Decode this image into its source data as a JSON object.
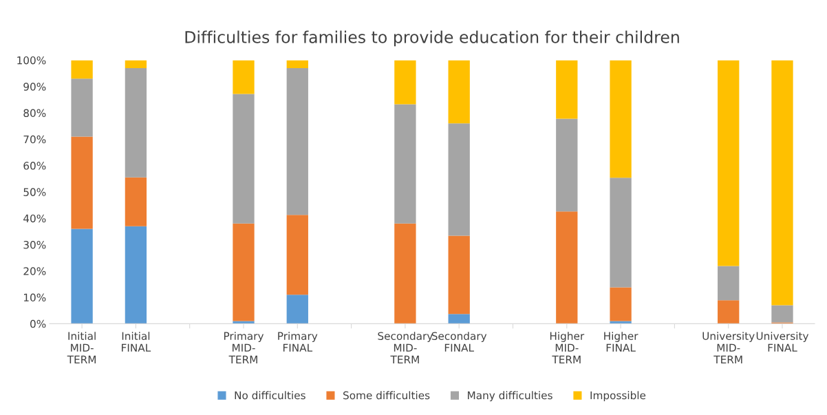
{
  "chart_data": {
    "type": "bar",
    "stacked": true,
    "title": "Difficulties for families to provide education for their children",
    "categories": [
      "Initial\nMID-\nTERM",
      "Initial\nFINAL",
      null,
      "Primary\nMID-\nTERM",
      "Primary\nFINAL",
      null,
      "Secondary\nMID-\nTERM",
      "Secondary\nFINAL",
      null,
      "Higher\nMID-\nTERM",
      "Higher\nFINAL",
      null,
      "University\nMID-\nTERM",
      "University\nFINAL"
    ],
    "series": [
      {
        "name": "No difficulties",
        "color": "#5b9bd5",
        "values": [
          36,
          37,
          null,
          1,
          11,
          null,
          0,
          3.7,
          null,
          0,
          1,
          null,
          0,
          0
        ]
      },
      {
        "name": "Some difficulties",
        "color": "#ed7d31",
        "values": [
          35,
          18.5,
          null,
          37,
          30.3,
          null,
          38,
          29.7,
          null,
          42.6,
          12.8,
          null,
          8.9,
          0.5
        ]
      },
      {
        "name": "Many difficulties",
        "color": "#a5a5a5",
        "values": [
          22,
          41.5,
          null,
          49.2,
          55.7,
          null,
          45.3,
          42.6,
          null,
          35.2,
          41.6,
          null,
          13,
          6.5
        ]
      },
      {
        "name": "Impossible",
        "color": "#ffc000",
        "values": [
          7,
          3,
          null,
          12.8,
          3,
          null,
          16.7,
          24,
          null,
          22.2,
          44.6,
          null,
          78.1,
          93
        ]
      }
    ],
    "ylim": [
      0,
      100
    ],
    "yticks": [
      {
        "value": 0,
        "label": "0%"
      },
      {
        "value": 10,
        "label": "10%"
      },
      {
        "value": 20,
        "label": "20%"
      },
      {
        "value": 30,
        "label": "30%"
      },
      {
        "value": 40,
        "label": "40%"
      },
      {
        "value": 50,
        "label": "50%"
      },
      {
        "value": 60,
        "label": "60%"
      },
      {
        "value": 70,
        "label": "70%"
      },
      {
        "value": 80,
        "label": "80%"
      },
      {
        "value": 90,
        "label": "90%"
      },
      {
        "value": 100,
        "label": "100%"
      }
    ],
    "legend": "bottom"
  }
}
